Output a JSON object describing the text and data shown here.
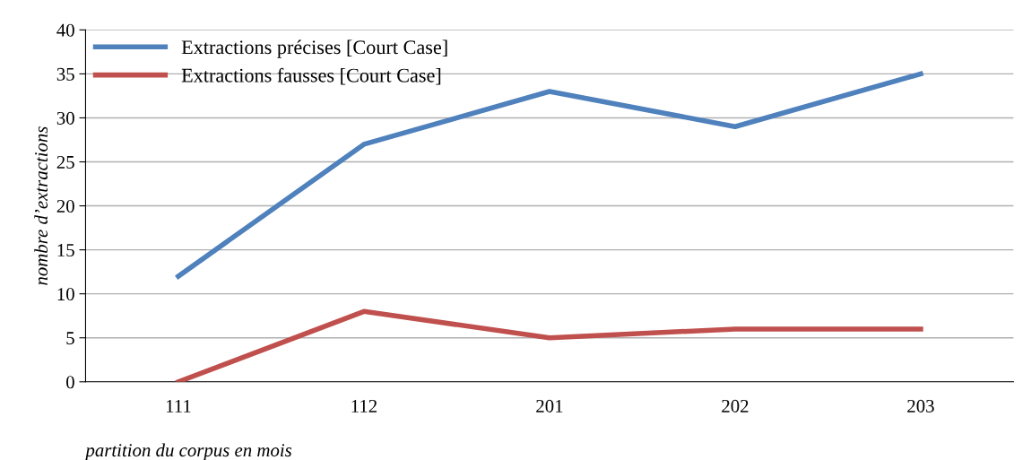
{
  "chart_data": {
    "type": "line",
    "categories": [
      "111",
      "112",
      "201",
      "202",
      "203"
    ],
    "series": [
      {
        "name": "Extractions précises [Court Case]",
        "color": "#4f81bd",
        "values": [
          12,
          27,
          33,
          29,
          35
        ]
      },
      {
        "name": "Extractions fausses [Court Case]",
        "color": "#c0504d",
        "values": [
          0,
          8,
          5,
          6,
          6
        ]
      }
    ],
    "xlabel": "partition du corpus en mois",
    "ylabel": "nombre d’extractions",
    "ylim": [
      0,
      40
    ],
    "yticks": [
      0,
      5,
      10,
      15,
      20,
      25,
      30,
      35,
      40
    ],
    "grid": "y",
    "legend": "top left",
    "marker": "none",
    "line_style": "solid"
  }
}
